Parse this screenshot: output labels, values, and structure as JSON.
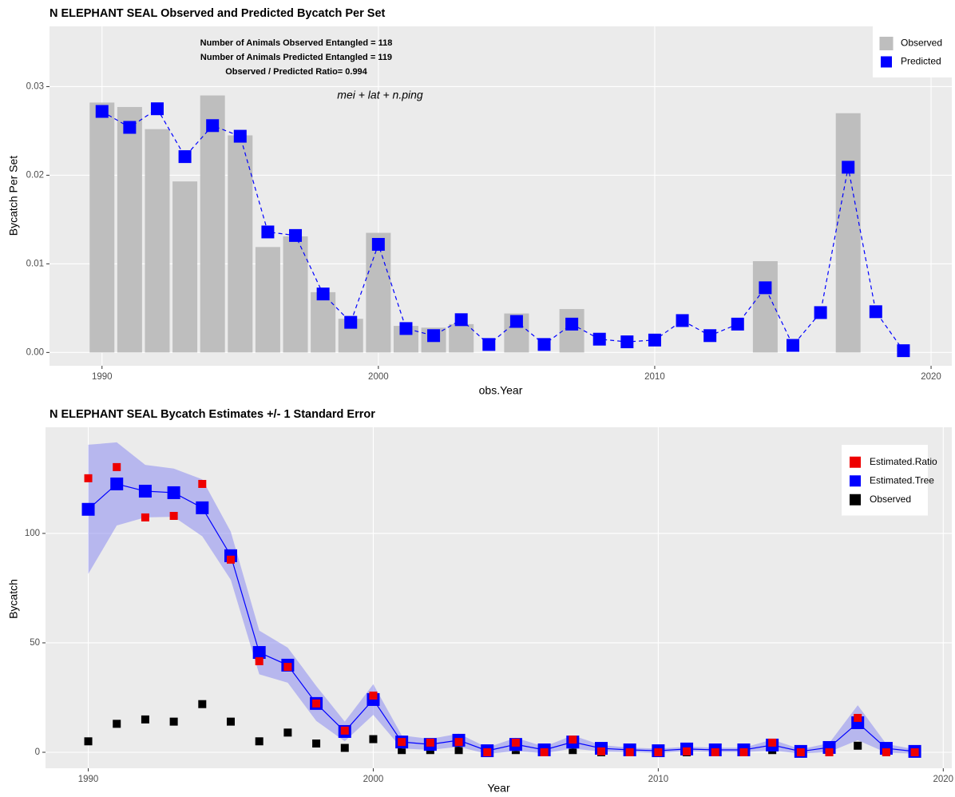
{
  "chart_data": [
    {
      "type": "bar",
      "title": "N ELEPHANT SEAL Observed and Predicted Bycatch Per Set",
      "x_label": "obs.Year",
      "y_label": "Bycatch Per Set",
      "annotations": [
        "Number of Animals Observed Entangled = 118",
        "Number of Animals Predicted Entangled = 119",
        "Observed / Predicted Ratio= 0.994"
      ],
      "formula": "mei + lat + n.ping",
      "x": [
        1990,
        1991,
        1992,
        1993,
        1994,
        1995,
        1996,
        1997,
        1998,
        1999,
        2000,
        2001,
        2002,
        2003,
        2004,
        2005,
        2006,
        2007,
        2008,
        2009,
        2010,
        2011,
        2012,
        2013,
        2014,
        2015,
        2016,
        2017,
        2018,
        2019
      ],
      "series": [
        {
          "name": "Observed",
          "color": "#bebebe",
          "style": "bar",
          "values": [
            0.0282,
            0.0277,
            0.0252,
            0.0193,
            0.029,
            0.0245,
            0.0119,
            0.0131,
            0.0068,
            0.0038,
            0.0135,
            0.003,
            0.0028,
            0.0032,
            0,
            0.0044,
            0,
            0.0049,
            0,
            0,
            0,
            0,
            0,
            0,
            0.0103,
            0,
            0,
            0.027,
            0,
            0
          ]
        },
        {
          "name": "Predicted",
          "color": "#0000ff",
          "style": "dashed-points",
          "values": [
            0.0272,
            0.0254,
            0.0275,
            0.0221,
            0.0256,
            0.0244,
            0.0136,
            0.0132,
            0.0066,
            0.0034,
            0.0122,
            0.0027,
            0.0019,
            0.0037,
            0.0009,
            0.0035,
            0.0009,
            0.0032,
            0.0015,
            0.0012,
            0.0014,
            0.0036,
            0.0019,
            0.0032,
            0.0073,
            0.0008,
            0.0045,
            0.0209,
            0.0046,
            0.0002
          ]
        }
      ],
      "xlim": [
        1988.1,
        2020.75
      ],
      "xticks": [
        1990,
        2000,
        2010,
        2020
      ],
      "ylim": [
        -0.0015,
        0.0368
      ],
      "yticks": [
        {
          "value": 0,
          "label": "0.00"
        },
        0.01,
        0.02,
        0.03
      ],
      "grid": true,
      "legend": "top-right"
    },
    {
      "type": "line",
      "title": "N ELEPHANT SEAL Bycatch Estimates +/- 1 Standard Error",
      "x_label": "Year",
      "y_label": "Bycatch",
      "x": [
        1990,
        1991,
        1992,
        1993,
        1994,
        1995,
        1996,
        1997,
        1998,
        1999,
        2000,
        2001,
        2002,
        2003,
        2004,
        2005,
        2006,
        2007,
        2008,
        2009,
        2010,
        2011,
        2012,
        2013,
        2014,
        2015,
        2016,
        2017,
        2018,
        2019
      ],
      "series": [
        {
          "name": "Estimated.Ratio",
          "color": "#ee0000",
          "style": "points",
          "values": [
            125.2,
            130.3,
            107.3,
            108,
            122.6,
            88,
            41.6,
            39,
            22.3,
            9.9,
            25.9,
            4.7,
            4.4,
            4.7,
            0,
            4.4,
            0,
            5.8,
            0.4,
            0,
            0,
            0.4,
            0,
            0,
            4.4,
            0,
            0,
            15.7,
            0,
            0
          ]
        },
        {
          "name": "Estimated.Tree",
          "color": "#0000ff",
          "style": "line-points",
          "band_color": "#8c8cf0",
          "values": [
            111,
            122.6,
            119.3,
            118.6,
            111.7,
            89.8,
            45.6,
            39.8,
            22.3,
            9.5,
            24.1,
            4.7,
            3.6,
            5.5,
            0.7,
            3.6,
            1.1,
            4.7,
            1.8,
            1.1,
            0.7,
            1.5,
            1.1,
            1.1,
            3.3,
            0.4,
            2.2,
            13.5,
            1.8,
            0.4
          ],
          "errors": [
            29.5,
            19,
            12,
            11,
            13,
            11,
            10,
            8,
            8,
            4.5,
            7,
            3,
            2.5,
            3,
            1.5,
            3,
            1.5,
            3,
            1.5,
            1,
            1,
            1,
            1,
            1,
            2.5,
            1,
            2,
            8,
            2,
            1
          ]
        },
        {
          "name": "Observed",
          "color": "#000000",
          "style": "points",
          "values": [
            5,
            13,
            15,
            14,
            22,
            14,
            5,
            9,
            4,
            2,
            6,
            1,
            1,
            1,
            0,
            1,
            0,
            1,
            0,
            0,
            0,
            0,
            0,
            0,
            1,
            0,
            0,
            3,
            0,
            0
          ]
        }
      ],
      "xlim": [
        1988.5,
        2020.3
      ],
      "xticks": [
        1990,
        2000,
        2010,
        2020
      ],
      "ylim": [
        -7.3,
        148.5
      ],
      "yticks": [
        0,
        50,
        100
      ],
      "grid": true,
      "legend": "top-right"
    }
  ]
}
